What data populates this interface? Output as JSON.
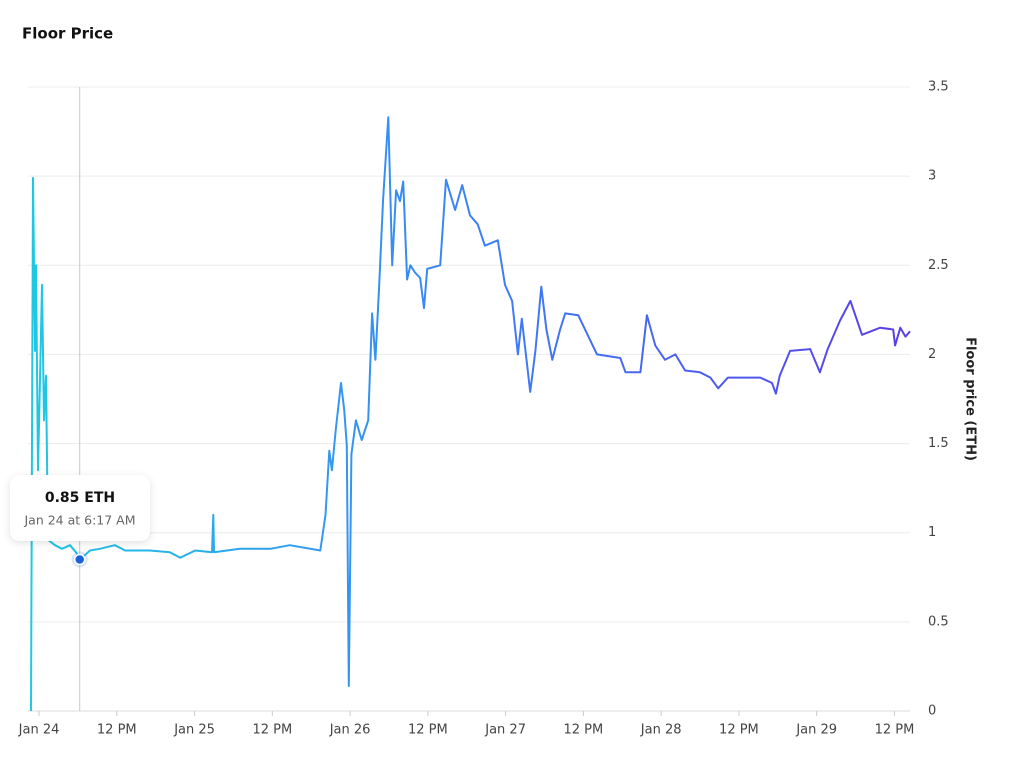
{
  "chart_data": {
    "type": "line",
    "title": "Floor Price",
    "y_label": "Floor price (ETH)",
    "y_axis_side": "right",
    "grid": true,
    "gradient_colors": [
      "#1fc8e3",
      "#3b82f6",
      "#5b3ee6"
    ],
    "xlim": [
      -1.7,
      134.4
    ],
    "ylim": [
      0,
      3.5
    ],
    "xticks": [
      {
        "value": 0,
        "label": "Jan 24"
      },
      {
        "value": 12,
        "label": "12 PM"
      },
      {
        "value": 24,
        "label": "Jan 25"
      },
      {
        "value": 36,
        "label": "12 PM"
      },
      {
        "value": 48,
        "label": "Jan 26"
      },
      {
        "value": 60,
        "label": "12 PM"
      },
      {
        "value": 72,
        "label": "Jan 27"
      },
      {
        "value": 84,
        "label": "12 PM"
      },
      {
        "value": 96,
        "label": "Jan 28"
      },
      {
        "value": 108,
        "label": "12 PM"
      },
      {
        "value": 120,
        "label": "Jan 29"
      },
      {
        "value": 132,
        "label": "12 PM"
      }
    ],
    "yticks": [
      0,
      0.5,
      1,
      1.5,
      2,
      2.5,
      3,
      3.5
    ],
    "series": [
      {
        "name": "Floor price",
        "x": [
          -1.23,
          -0.93,
          -0.62,
          -0.46,
          -0.15,
          0.15,
          0.46,
          0.77,
          1.08,
          1.39,
          2.47,
          3.55,
          4.78,
          5.71,
          6.33,
          7.87,
          9.4,
          11.7,
          13.3,
          17.1,
          20.2,
          21.8,
          24.1,
          26.7,
          26.9,
          27.0,
          31.0,
          35.7,
          38.7,
          43.4,
          44.2,
          44.8,
          45.2,
          45.8,
          46.6,
          47.1,
          47.5,
          47.8,
          48.2,
          48.9,
          49.8,
          50.8,
          51.4,
          51.9,
          52.5,
          53.1,
          53.9,
          54.5,
          55.1,
          55.7,
          56.2,
          56.8,
          57.3,
          58.0,
          58.8,
          59.4,
          59.9,
          61.9,
          62.8,
          64.2,
          65.3,
          66.5,
          67.7,
          68.8,
          70.8,
          71.9,
          73.0,
          73.9,
          74.5,
          75.8,
          76.6,
          77.5,
          78.3,
          79.2,
          80.4,
          81.2,
          83.2,
          86.1,
          89.7,
          90.5,
          92.8,
          93.8,
          95.1,
          96.6,
          98.2,
          99.7,
          102,
          103.6,
          104.8,
          106.3,
          108.2,
          111.3,
          113.1,
          113.7,
          114.3,
          115.9,
          119,
          120.5,
          121.7,
          123.6,
          125.2,
          127,
          129.8,
          131.8,
          132.1,
          132.9,
          133.7,
          134.4
        ],
        "values": [
          0,
          2.99,
          2.02,
          2.5,
          1.35,
          1.86,
          2.39,
          1.63,
          1.88,
          0.96,
          0.93,
          0.91,
          0.93,
          0.89,
          0.85,
          0.9,
          0.91,
          0.93,
          0.9,
          0.9,
          0.89,
          0.86,
          0.9,
          0.89,
          1.1,
          0.89,
          0.91,
          0.91,
          0.93,
          0.9,
          1.1,
          1.46,
          1.35,
          1.58,
          1.84,
          1.69,
          1.49,
          0.14,
          1.44,
          1.63,
          1.52,
          1.63,
          2.23,
          1.97,
          2.39,
          2.87,
          3.33,
          2.5,
          2.92,
          2.86,
          2.97,
          2.42,
          2.5,
          2.46,
          2.43,
          2.26,
          2.48,
          2.5,
          2.98,
          2.81,
          2.95,
          2.78,
          2.73,
          2.61,
          2.64,
          2.39,
          2.3,
          2.0,
          2.2,
          1.79,
          2.02,
          2.38,
          2.14,
          1.97,
          2.14,
          2.23,
          2.22,
          2.0,
          1.98,
          1.9,
          1.9,
          2.22,
          2.05,
          1.97,
          2.0,
          1.91,
          1.9,
          1.87,
          1.81,
          1.87,
          1.87,
          1.87,
          1.84,
          1.78,
          1.88,
          2.02,
          2.03,
          1.9,
          2.03,
          2.19,
          2.3,
          2.11,
          2.15,
          2.14,
          2.05,
          2.15,
          2.1,
          2.13
        ]
      }
    ],
    "tooltip": {
      "x": 6.28,
      "value": 0.85,
      "value_label": "0.85 ETH",
      "date": "Jan 24 at 6:17 AM"
    }
  }
}
